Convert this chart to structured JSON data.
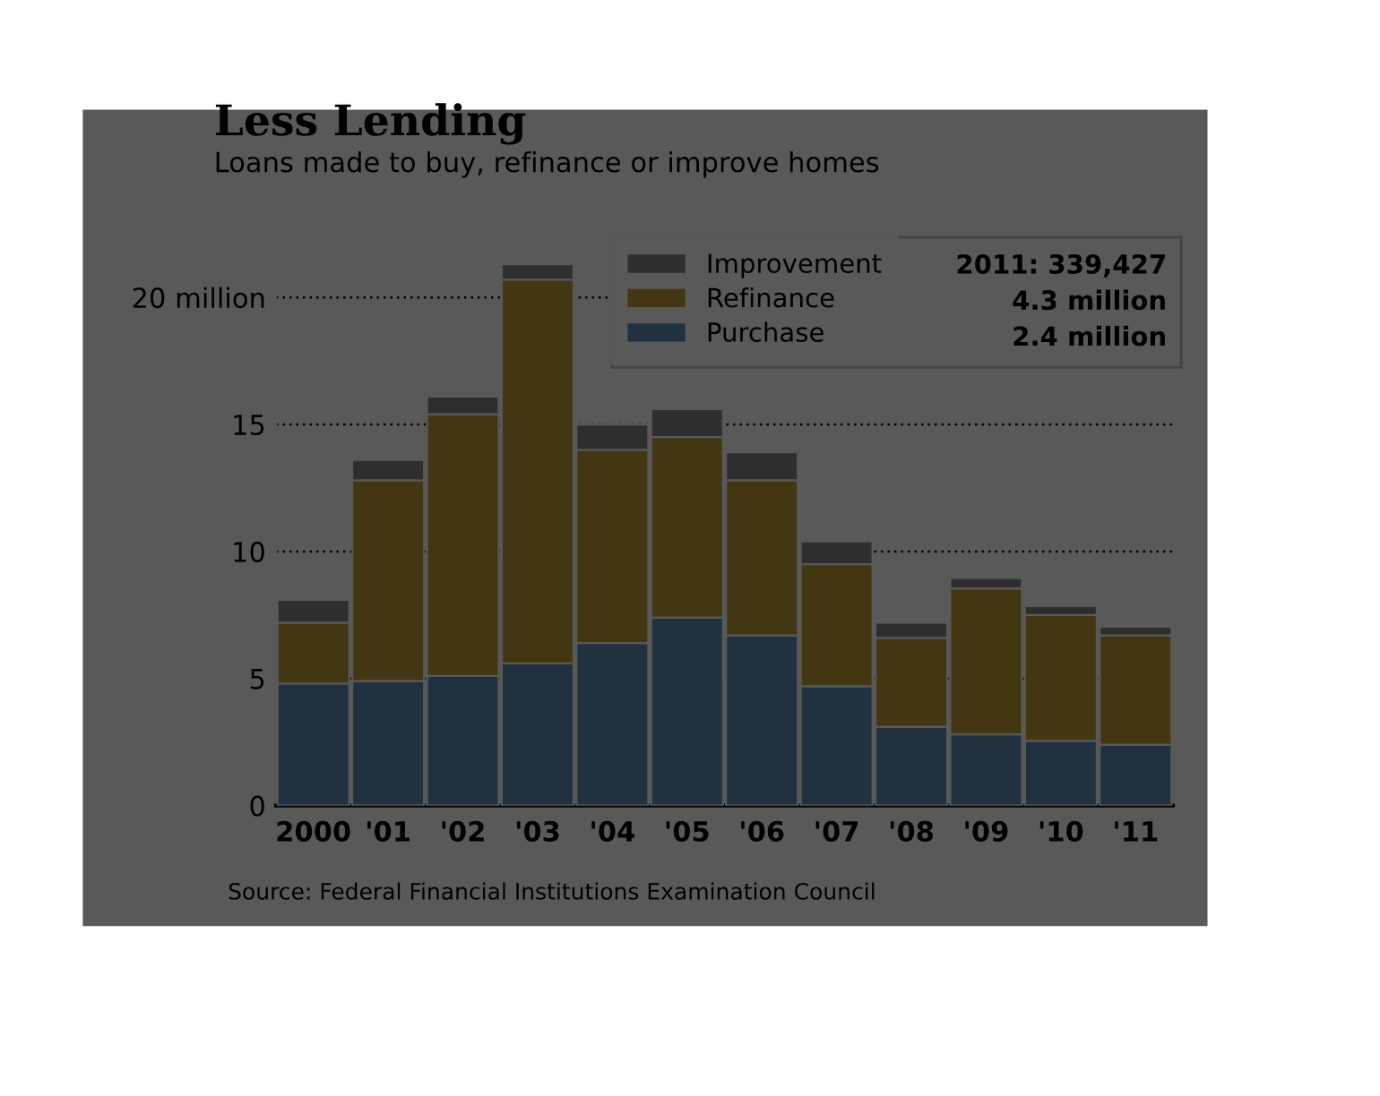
{
  "chart_data": {
    "type": "bar",
    "title": "Less Lending",
    "subtitle": "Loans made to buy, refinance or improve homes",
    "categories": [
      "2000",
      "'01",
      "'02",
      "'03",
      "'04",
      "'05",
      "'06",
      "'07",
      "'08",
      "'09",
      "'10",
      "'11"
    ],
    "stacked": true,
    "series": [
      {
        "name": "Purchase",
        "color": "#213140",
        "values": [
          4.8,
          4.9,
          5.1,
          5.6,
          6.4,
          7.4,
          6.7,
          4.7,
          3.1,
          2.8,
          2.55,
          2.4
        ]
      },
      {
        "name": "Refinance",
        "color": "#433612",
        "values": [
          2.4,
          7.9,
          10.3,
          15.1,
          7.6,
          7.1,
          6.1,
          4.8,
          3.5,
          5.75,
          4.95,
          4.3
        ]
      },
      {
        "name": "Improvement",
        "color": "#2e2e2e",
        "values": [
          0.9,
          0.8,
          0.7,
          0.6,
          1.0,
          1.1,
          1.1,
          0.9,
          0.6,
          0.4,
          0.35,
          0.34
        ]
      }
    ],
    "ylim": [
      0,
      22
    ],
    "yticks": [
      0,
      5,
      10,
      15,
      {
        "value": 20,
        "label": "20 million"
      }
    ],
    "grid": "y",
    "legend": "top right",
    "annotations": [
      "2011: 339,427",
      "4.3 million",
      "2.4 million",
      "Source: Federal Financial Institutions Examination Council"
    ]
  }
}
